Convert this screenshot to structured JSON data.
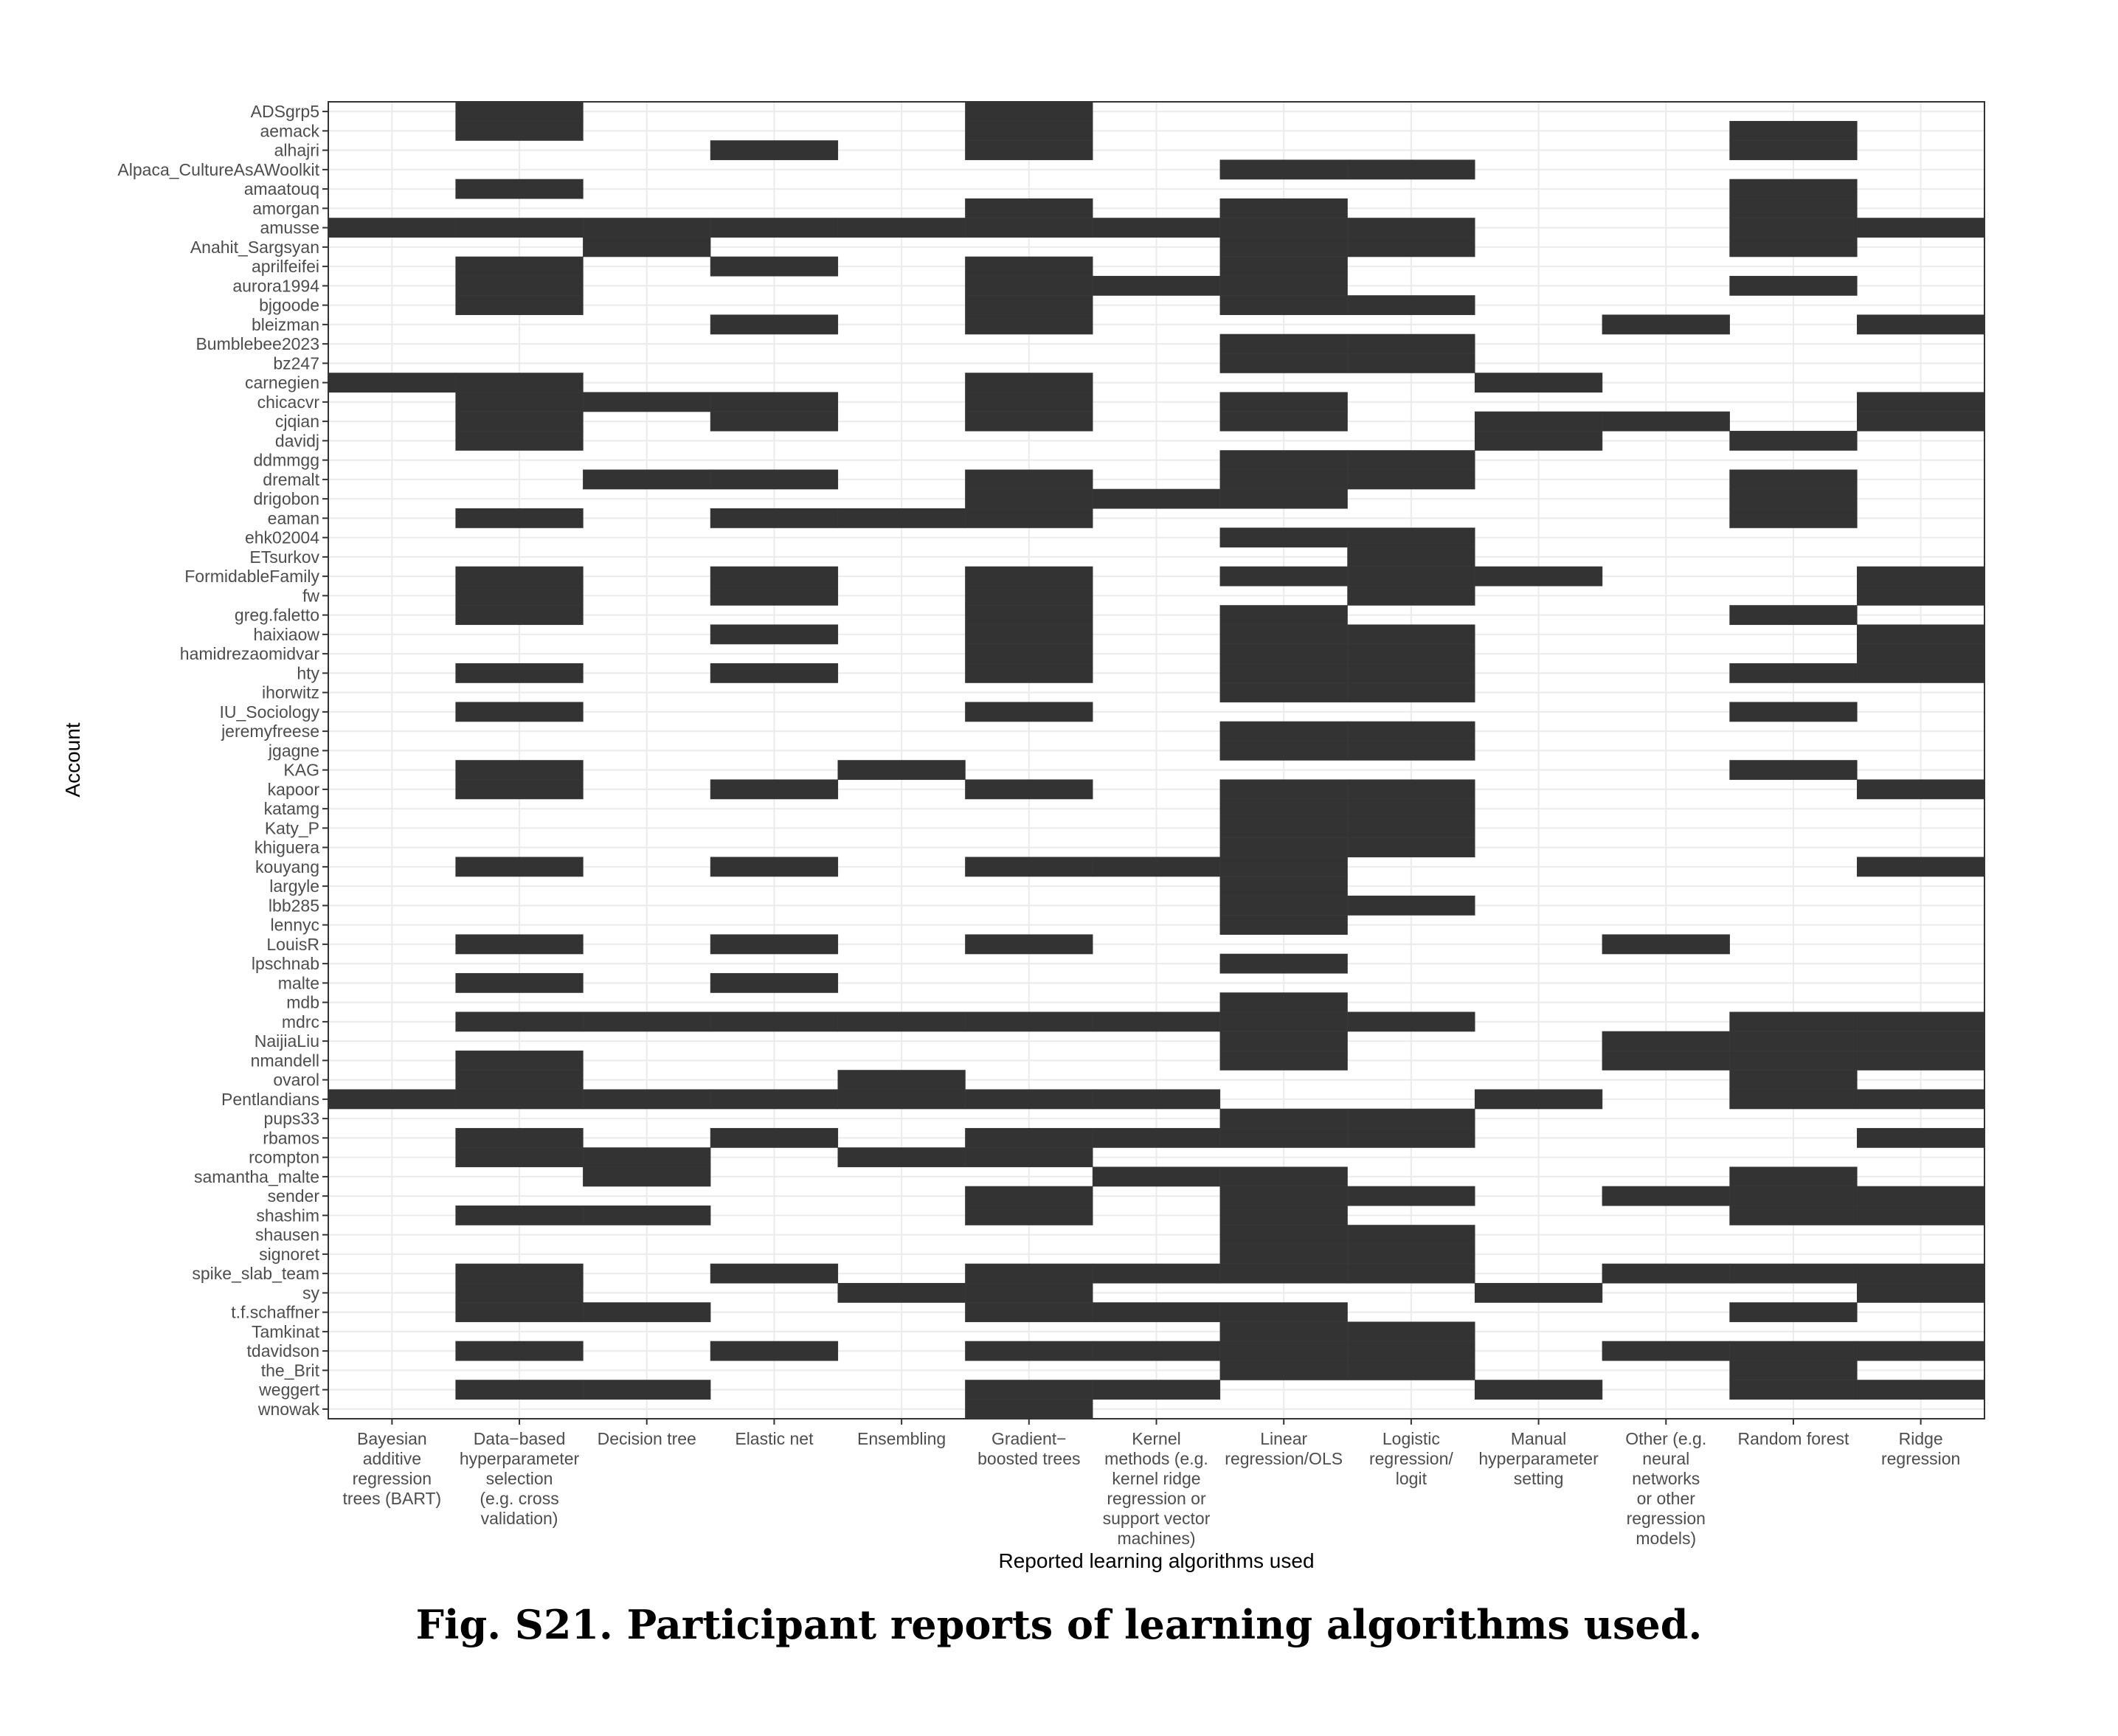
{
  "caption": "Fig. S21. Participant reports of learning algorithms used.",
  "chart_data": {
    "type": "heatmap",
    "xlabel": "Reported learning algorithms used",
    "ylabel": "Account",
    "fill_color": "#333333",
    "grid": true,
    "x_categories": [
      [
        "Bayesian",
        "additive",
        "regression",
        "trees (BART)"
      ],
      [
        "Data−based",
        "hyperparameter",
        "selection",
        "(e.g. cross",
        "validation)"
      ],
      [
        "Decision tree"
      ],
      [
        "Elastic net"
      ],
      [
        "Ensembling"
      ],
      [
        "Gradient−",
        "boosted trees"
      ],
      [
        "Kernel",
        "methods (e.g.",
        "kernel ridge",
        "regression or",
        "support vector",
        "machines)"
      ],
      [
        "Linear",
        "regression/OLS"
      ],
      [
        "Logistic",
        "regression/",
        "logit"
      ],
      [
        "Manual",
        "hyperparameter",
        "setting"
      ],
      [
        "Other (e.g.",
        "neural",
        "networks",
        "or other",
        "regression",
        "models)"
      ],
      [
        "Random forest"
      ],
      [
        "Ridge",
        "regression"
      ]
    ],
    "y_categories": [
      "ADSgrp5",
      "aemack",
      "alhajri",
      "Alpaca_CultureAsAWoolkit",
      "amaatouq",
      "amorgan",
      "amusse",
      "Anahit_Sargsyan",
      "aprilfeifei",
      "aurora1994",
      "bjgoode",
      "bleizman",
      "Bumblebee2023",
      "bz247",
      "carnegien",
      "chicacvr",
      "cjqian",
      "davidj",
      "ddmmgg",
      "dremalt",
      "drigobon",
      "eaman",
      "ehk02004",
      "ETsurkov",
      "FormidableFamily",
      "fw",
      "greg.faletto",
      "haixiaow",
      "hamidrezaomidvar",
      "hty",
      "ihorwitz",
      "IU_Sociology",
      "jeremyfreese",
      "jgagne",
      "KAG",
      "kapoor",
      "katamg",
      "Katy_P",
      "khiguera",
      "kouyang",
      "largyle",
      "lbb285",
      "lennyc",
      "LouisR",
      "lpschnab",
      "malte",
      "mdb",
      "mdrc",
      "NaijiaLiu",
      "nmandell",
      "ovarol",
      "Pentlandians",
      "pups33",
      "rbamos",
      "rcompton",
      "samantha_malte",
      "sender",
      "shashim",
      "shausen",
      "signoret",
      "spike_slab_team",
      "sy",
      "t.f.schaffner",
      "Tamkinat",
      "tdavidson",
      "the_Brit",
      "weggert",
      "wnowak"
    ],
    "cells": [
      [
        0,
        1
      ],
      [
        0,
        5
      ],
      [
        1,
        1
      ],
      [
        1,
        5
      ],
      [
        1,
        11
      ],
      [
        2,
        3
      ],
      [
        2,
        5
      ],
      [
        2,
        11
      ],
      [
        3,
        7
      ],
      [
        3,
        8
      ],
      [
        4,
        1
      ],
      [
        4,
        11
      ],
      [
        5,
        5
      ],
      [
        5,
        7
      ],
      [
        5,
        11
      ],
      [
        6,
        0
      ],
      [
        6,
        1
      ],
      [
        6,
        2
      ],
      [
        6,
        3
      ],
      [
        6,
        4
      ],
      [
        6,
        5
      ],
      [
        6,
        6
      ],
      [
        6,
        7
      ],
      [
        6,
        8
      ],
      [
        6,
        11
      ],
      [
        6,
        12
      ],
      [
        7,
        2
      ],
      [
        7,
        7
      ],
      [
        7,
        8
      ],
      [
        7,
        11
      ],
      [
        8,
        1
      ],
      [
        8,
        3
      ],
      [
        8,
        5
      ],
      [
        8,
        7
      ],
      [
        9,
        1
      ],
      [
        9,
        5
      ],
      [
        9,
        6
      ],
      [
        9,
        7
      ],
      [
        9,
        11
      ],
      [
        10,
        1
      ],
      [
        10,
        5
      ],
      [
        10,
        7
      ],
      [
        10,
        8
      ],
      [
        11,
        3
      ],
      [
        11,
        5
      ],
      [
        11,
        10
      ],
      [
        11,
        12
      ],
      [
        12,
        7
      ],
      [
        12,
        8
      ],
      [
        13,
        7
      ],
      [
        13,
        8
      ],
      [
        14,
        0
      ],
      [
        14,
        1
      ],
      [
        14,
        5
      ],
      [
        14,
        9
      ],
      [
        15,
        1
      ],
      [
        15,
        2
      ],
      [
        15,
        3
      ],
      [
        15,
        5
      ],
      [
        15,
        7
      ],
      [
        15,
        12
      ],
      [
        16,
        1
      ],
      [
        16,
        3
      ],
      [
        16,
        5
      ],
      [
        16,
        7
      ],
      [
        16,
        9
      ],
      [
        16,
        10
      ],
      [
        16,
        12
      ],
      [
        17,
        1
      ],
      [
        17,
        9
      ],
      [
        17,
        11
      ],
      [
        18,
        7
      ],
      [
        18,
        8
      ],
      [
        19,
        2
      ],
      [
        19,
        3
      ],
      [
        19,
        5
      ],
      [
        19,
        7
      ],
      [
        19,
        8
      ],
      [
        19,
        11
      ],
      [
        20,
        5
      ],
      [
        20,
        6
      ],
      [
        20,
        7
      ],
      [
        20,
        11
      ],
      [
        21,
        1
      ],
      [
        21,
        3
      ],
      [
        21,
        4
      ],
      [
        21,
        5
      ],
      [
        21,
        11
      ],
      [
        22,
        7
      ],
      [
        22,
        8
      ],
      [
        23,
        8
      ],
      [
        24,
        1
      ],
      [
        24,
        3
      ],
      [
        24,
        5
      ],
      [
        24,
        7
      ],
      [
        24,
        8
      ],
      [
        24,
        9
      ],
      [
        24,
        12
      ],
      [
        25,
        1
      ],
      [
        25,
        3
      ],
      [
        25,
        5
      ],
      [
        25,
        8
      ],
      [
        25,
        12
      ],
      [
        26,
        1
      ],
      [
        26,
        5
      ],
      [
        26,
        7
      ],
      [
        26,
        11
      ],
      [
        27,
        3
      ],
      [
        27,
        5
      ],
      [
        27,
        7
      ],
      [
        27,
        8
      ],
      [
        27,
        12
      ],
      [
        28,
        5
      ],
      [
        28,
        7
      ],
      [
        28,
        8
      ],
      [
        28,
        12
      ],
      [
        29,
        1
      ],
      [
        29,
        3
      ],
      [
        29,
        5
      ],
      [
        29,
        7
      ],
      [
        29,
        8
      ],
      [
        29,
        11
      ],
      [
        29,
        12
      ],
      [
        30,
        7
      ],
      [
        30,
        8
      ],
      [
        31,
        1
      ],
      [
        31,
        5
      ],
      [
        31,
        11
      ],
      [
        32,
        7
      ],
      [
        32,
        8
      ],
      [
        33,
        7
      ],
      [
        33,
        8
      ],
      [
        34,
        1
      ],
      [
        34,
        4
      ],
      [
        34,
        11
      ],
      [
        35,
        1
      ],
      [
        35,
        3
      ],
      [
        35,
        5
      ],
      [
        35,
        7
      ],
      [
        35,
        8
      ],
      [
        35,
        12
      ],
      [
        36,
        7
      ],
      [
        36,
        8
      ],
      [
        37,
        7
      ],
      [
        37,
        8
      ],
      [
        38,
        7
      ],
      [
        38,
        8
      ],
      [
        39,
        1
      ],
      [
        39,
        3
      ],
      [
        39,
        5
      ],
      [
        39,
        6
      ],
      [
        39,
        7
      ],
      [
        39,
        12
      ],
      [
        40,
        7
      ],
      [
        41,
        7
      ],
      [
        41,
        8
      ],
      [
        42,
        7
      ],
      [
        43,
        1
      ],
      [
        43,
        3
      ],
      [
        43,
        5
      ],
      [
        43,
        10
      ],
      [
        44,
        7
      ],
      [
        45,
        1
      ],
      [
        45,
        3
      ],
      [
        46,
        7
      ],
      [
        47,
        1
      ],
      [
        47,
        2
      ],
      [
        47,
        3
      ],
      [
        47,
        4
      ],
      [
        47,
        5
      ],
      [
        47,
        6
      ],
      [
        47,
        7
      ],
      [
        47,
        8
      ],
      [
        47,
        11
      ],
      [
        47,
        12
      ],
      [
        48,
        7
      ],
      [
        48,
        10
      ],
      [
        48,
        11
      ],
      [
        48,
        12
      ],
      [
        49,
        1
      ],
      [
        49,
        7
      ],
      [
        49,
        10
      ],
      [
        49,
        11
      ],
      [
        49,
        12
      ],
      [
        50,
        1
      ],
      [
        50,
        4
      ],
      [
        50,
        11
      ],
      [
        51,
        0
      ],
      [
        51,
        1
      ],
      [
        51,
        2
      ],
      [
        51,
        3
      ],
      [
        51,
        4
      ],
      [
        51,
        5
      ],
      [
        51,
        6
      ],
      [
        51,
        9
      ],
      [
        51,
        11
      ],
      [
        51,
        12
      ],
      [
        52,
        7
      ],
      [
        52,
        8
      ],
      [
        53,
        1
      ],
      [
        53,
        3
      ],
      [
        53,
        5
      ],
      [
        53,
        6
      ],
      [
        53,
        7
      ],
      [
        53,
        8
      ],
      [
        53,
        12
      ],
      [
        54,
        1
      ],
      [
        54,
        2
      ],
      [
        54,
        4
      ],
      [
        54,
        5
      ],
      [
        55,
        2
      ],
      [
        55,
        6
      ],
      [
        55,
        7
      ],
      [
        55,
        11
      ],
      [
        56,
        5
      ],
      [
        56,
        7
      ],
      [
        56,
        8
      ],
      [
        56,
        10
      ],
      [
        56,
        11
      ],
      [
        56,
        12
      ],
      [
        57,
        1
      ],
      [
        57,
        2
      ],
      [
        57,
        5
      ],
      [
        57,
        7
      ],
      [
        57,
        11
      ],
      [
        57,
        12
      ],
      [
        58,
        7
      ],
      [
        58,
        8
      ],
      [
        59,
        7
      ],
      [
        59,
        8
      ],
      [
        60,
        1
      ],
      [
        60,
        3
      ],
      [
        60,
        5
      ],
      [
        60,
        6
      ],
      [
        60,
        7
      ],
      [
        60,
        8
      ],
      [
        60,
        10
      ],
      [
        60,
        11
      ],
      [
        60,
        12
      ],
      [
        61,
        1
      ],
      [
        61,
        4
      ],
      [
        61,
        5
      ],
      [
        61,
        9
      ],
      [
        61,
        12
      ],
      [
        62,
        1
      ],
      [
        62,
        2
      ],
      [
        62,
        5
      ],
      [
        62,
        6
      ],
      [
        62,
        7
      ],
      [
        62,
        11
      ],
      [
        63,
        7
      ],
      [
        63,
        8
      ],
      [
        64,
        1
      ],
      [
        64,
        3
      ],
      [
        64,
        5
      ],
      [
        64,
        6
      ],
      [
        64,
        7
      ],
      [
        64,
        8
      ],
      [
        64,
        10
      ],
      [
        64,
        11
      ],
      [
        64,
        12
      ],
      [
        65,
        7
      ],
      [
        65,
        8
      ],
      [
        65,
        11
      ],
      [
        66,
        1
      ],
      [
        66,
        2
      ],
      [
        66,
        5
      ],
      [
        66,
        6
      ],
      [
        66,
        9
      ],
      [
        66,
        11
      ],
      [
        66,
        12
      ],
      [
        67,
        5
      ]
    ]
  }
}
